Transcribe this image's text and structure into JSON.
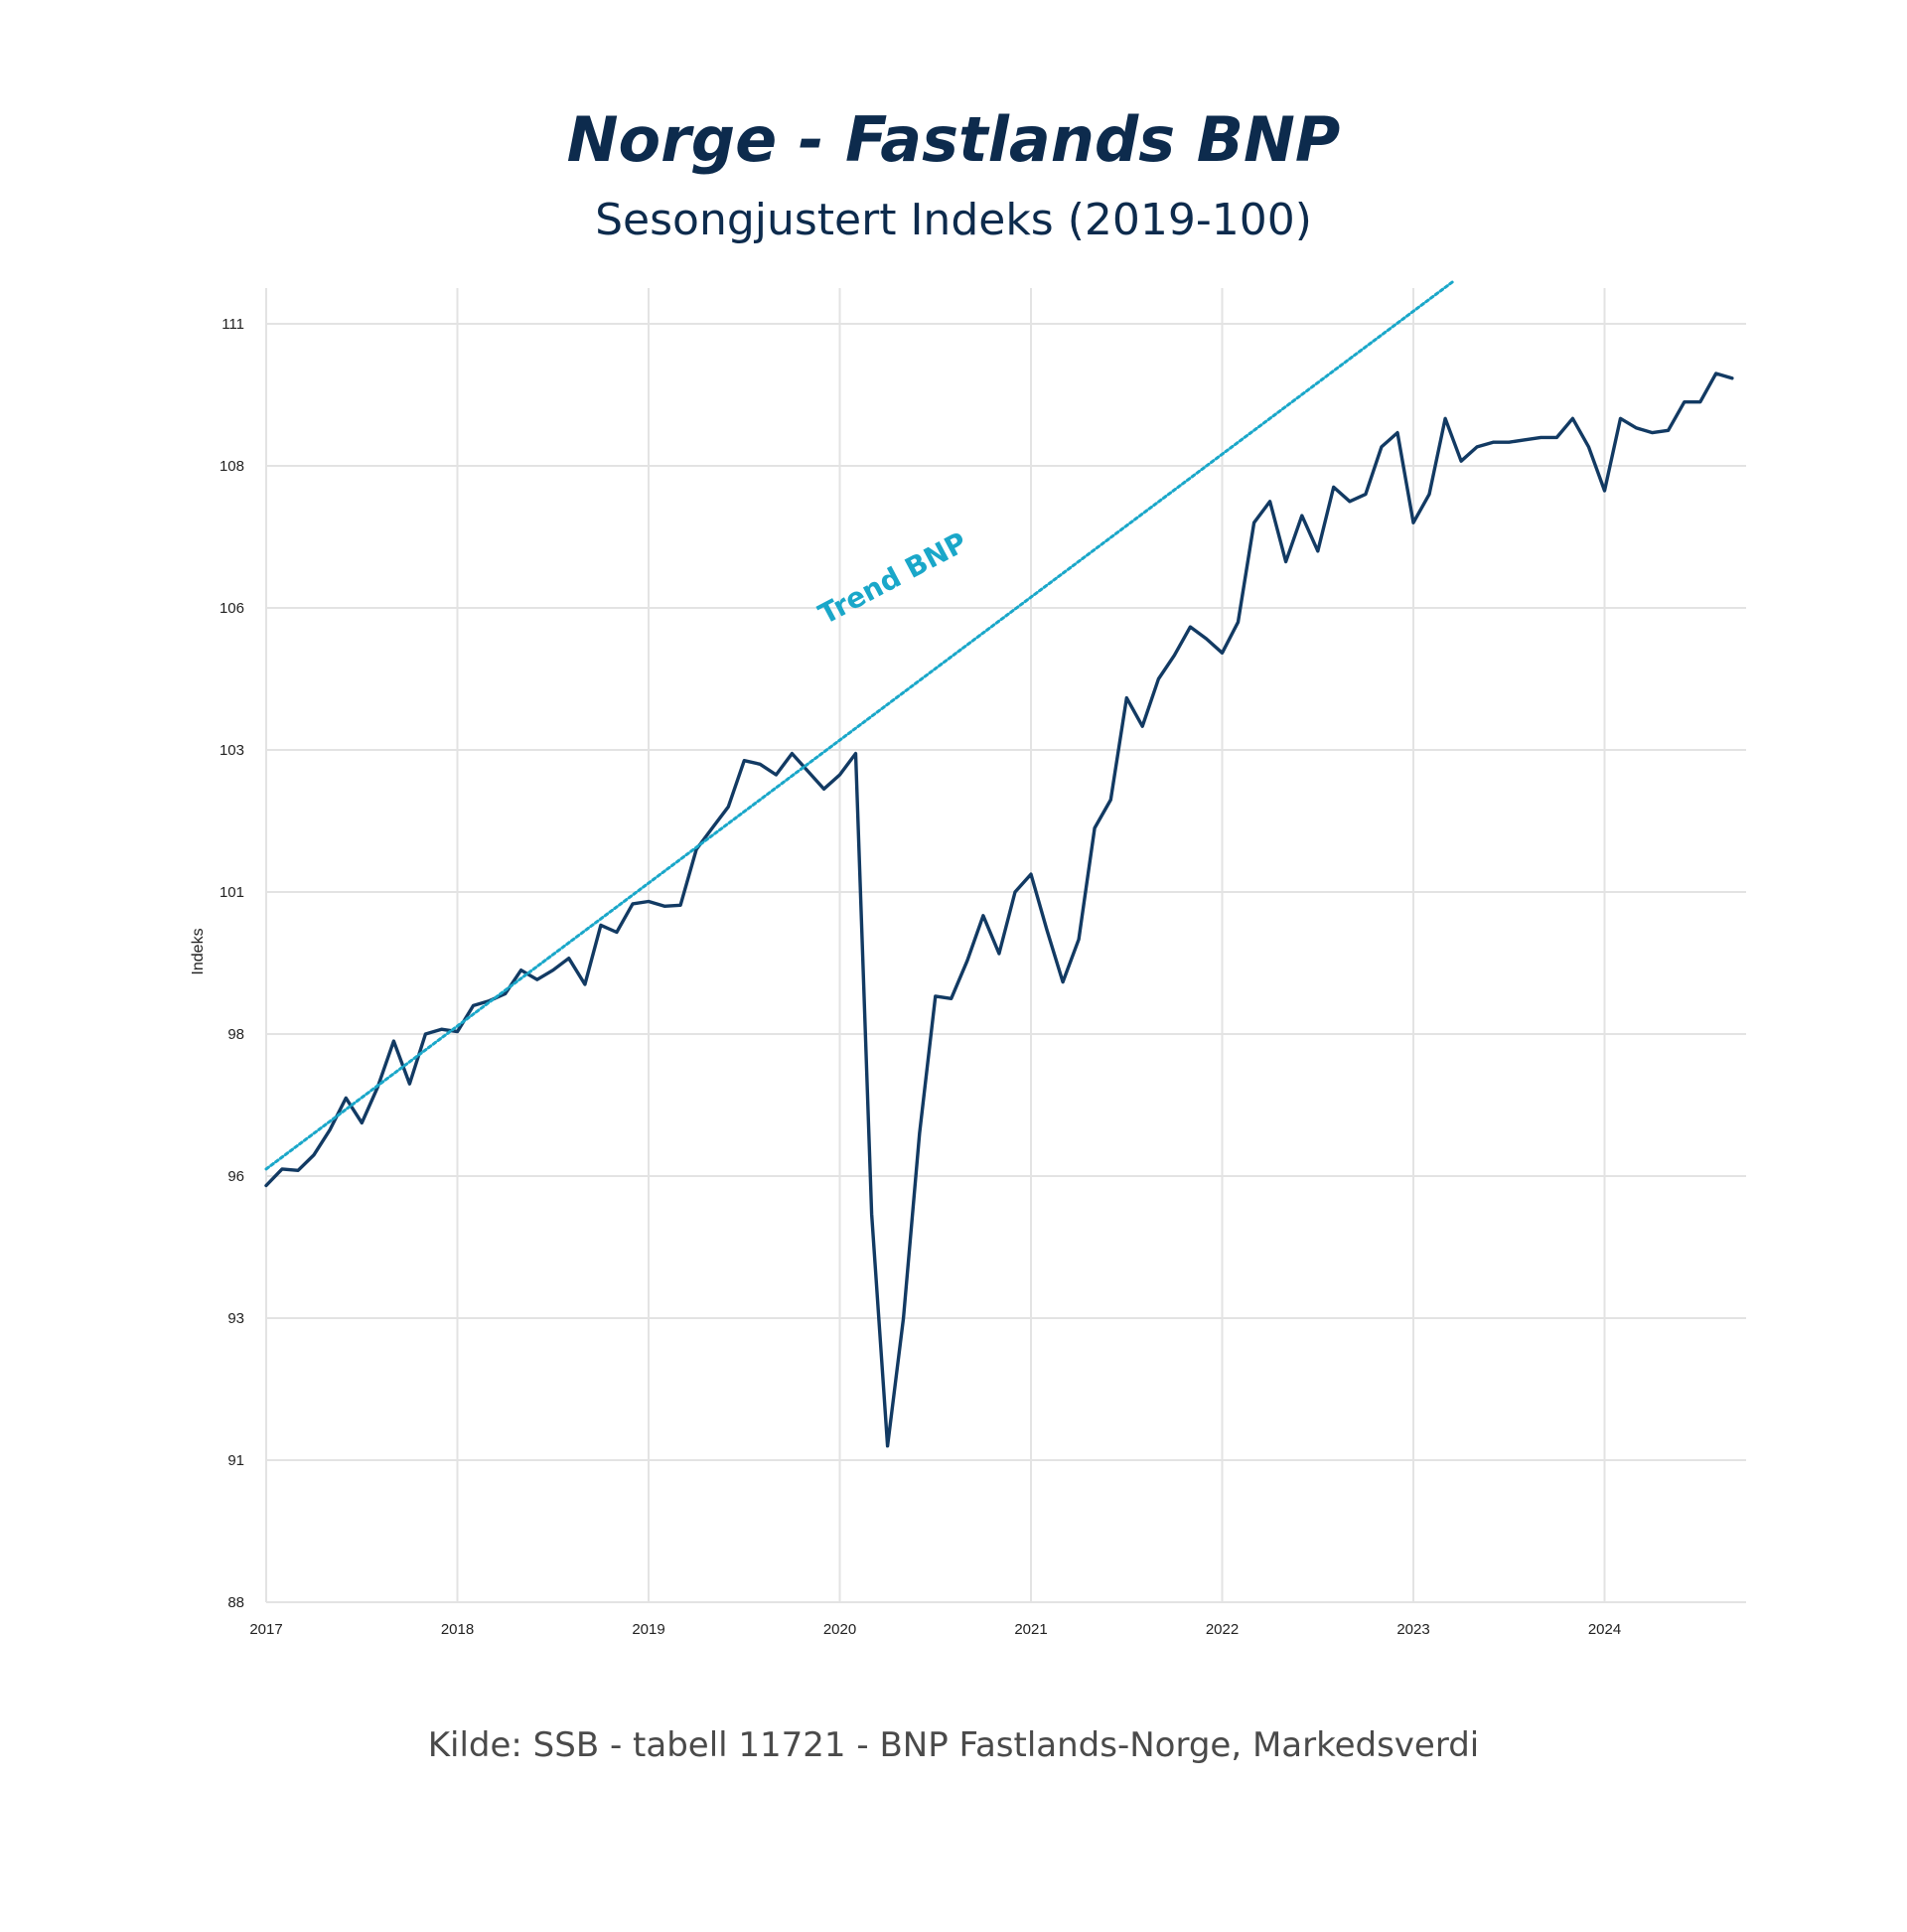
{
  "title": "Norge - Fastlands BNP",
  "subtitle": "Sesongjustert Indeks (2019-100)",
  "source": "Kilde: SSB - tabell 11721 - BNP Fastlands-Norge, Markedsverdi",
  "colors": {
    "title": "#0d2b4d",
    "series": "#123a63",
    "trend": "#1aa7c9",
    "grid": "#e3e3e3"
  },
  "chart_data": {
    "type": "line",
    "ylabel": "Indeks",
    "xlabel": "",
    "x_ticks": [
      "2017",
      "2018",
      "2019",
      "2020",
      "2021",
      "2022",
      "2023",
      "2024"
    ],
    "y_ticks": [
      88,
      91,
      93,
      96,
      98,
      101,
      103,
      106,
      108,
      111
    ],
    "ylim": [
      88,
      111
    ],
    "xlim": [
      2017,
      2024.75
    ],
    "grid": true,
    "series": [
      {
        "name": "",
        "style": "solid",
        "x": [
          2017.0,
          2017.083,
          2017.167,
          2017.25,
          2017.333,
          2017.417,
          2017.5,
          2017.583,
          2017.667,
          2017.75,
          2017.833,
          2017.917,
          2018.0,
          2018.083,
          2018.167,
          2018.25,
          2018.333,
          2018.417,
          2018.5,
          2018.583,
          2018.667,
          2018.75,
          2018.833,
          2018.917,
          2019.0,
          2019.083,
          2019.167,
          2019.25,
          2019.333,
          2019.417,
          2019.5,
          2019.583,
          2019.667,
          2019.75,
          2019.833,
          2019.917,
          2020.0,
          2020.083,
          2020.167,
          2020.25,
          2020.333,
          2020.417,
          2020.5,
          2020.583,
          2020.667,
          2020.75,
          2020.833,
          2020.917,
          2021.0,
          2021.083,
          2021.167,
          2021.25,
          2021.333,
          2021.417,
          2021.5,
          2021.583,
          2021.667,
          2021.75,
          2021.833,
          2021.917,
          2022.0,
          2022.083,
          2022.167,
          2022.25,
          2022.333,
          2022.417,
          2022.5,
          2022.583,
          2022.667,
          2022.75,
          2022.833,
          2022.917,
          2023.0,
          2023.083,
          2023.167,
          2023.25,
          2023.333,
          2023.417,
          2023.5,
          2023.583,
          2023.667,
          2023.75,
          2023.833,
          2023.917,
          2024.0,
          2024.083,
          2024.167,
          2024.25,
          2024.333,
          2024.417,
          2024.5,
          2024.583,
          2024.667
        ],
        "values": [
          95.8,
          96.1,
          96.08,
          96.3,
          96.65,
          97.1,
          96.75,
          97.25,
          97.9,
          97.3,
          98.0,
          98.1,
          98.05,
          98.6,
          98.7,
          98.85,
          99.35,
          99.15,
          99.35,
          99.6,
          99.05,
          100.3,
          100.15,
          100.75,
          100.8,
          100.7,
          100.72,
          101.6,
          101.9,
          102.2,
          102.85,
          102.8,
          102.65,
          102.95,
          102.7,
          102.45,
          102.65,
          102.95,
          95.2,
          91.2,
          93.0,
          96.6,
          98.8,
          98.75,
          99.55,
          100.5,
          99.7,
          101.0,
          101.25,
          100.2,
          99.1,
          100.0,
          101.9,
          102.3,
          104.1,
          103.5,
          104.5,
          105.0,
          105.6,
          105.35,
          105.05,
          105.7,
          107.2,
          107.5,
          106.65,
          107.3,
          106.8,
          107.7,
          107.5,
          107.6,
          108.4,
          108.7,
          107.2,
          107.6,
          109.0,
          108.1,
          108.4,
          108.5,
          108.5,
          108.55,
          108.6,
          108.6,
          109.0,
          108.4,
          107.65,
          109.0,
          108.8,
          108.7,
          108.75,
          109.35,
          109.35,
          109.95,
          109.85
        ]
      },
      {
        "name": "Trend BNP",
        "style": "dotted",
        "x": [
          2017.0,
          2023.21
        ],
        "values": [
          96.1,
          111.9
        ]
      }
    ],
    "annotations": [
      {
        "text": "Trend BNP",
        "x": 2020.3,
        "y": 106.3
      }
    ]
  }
}
